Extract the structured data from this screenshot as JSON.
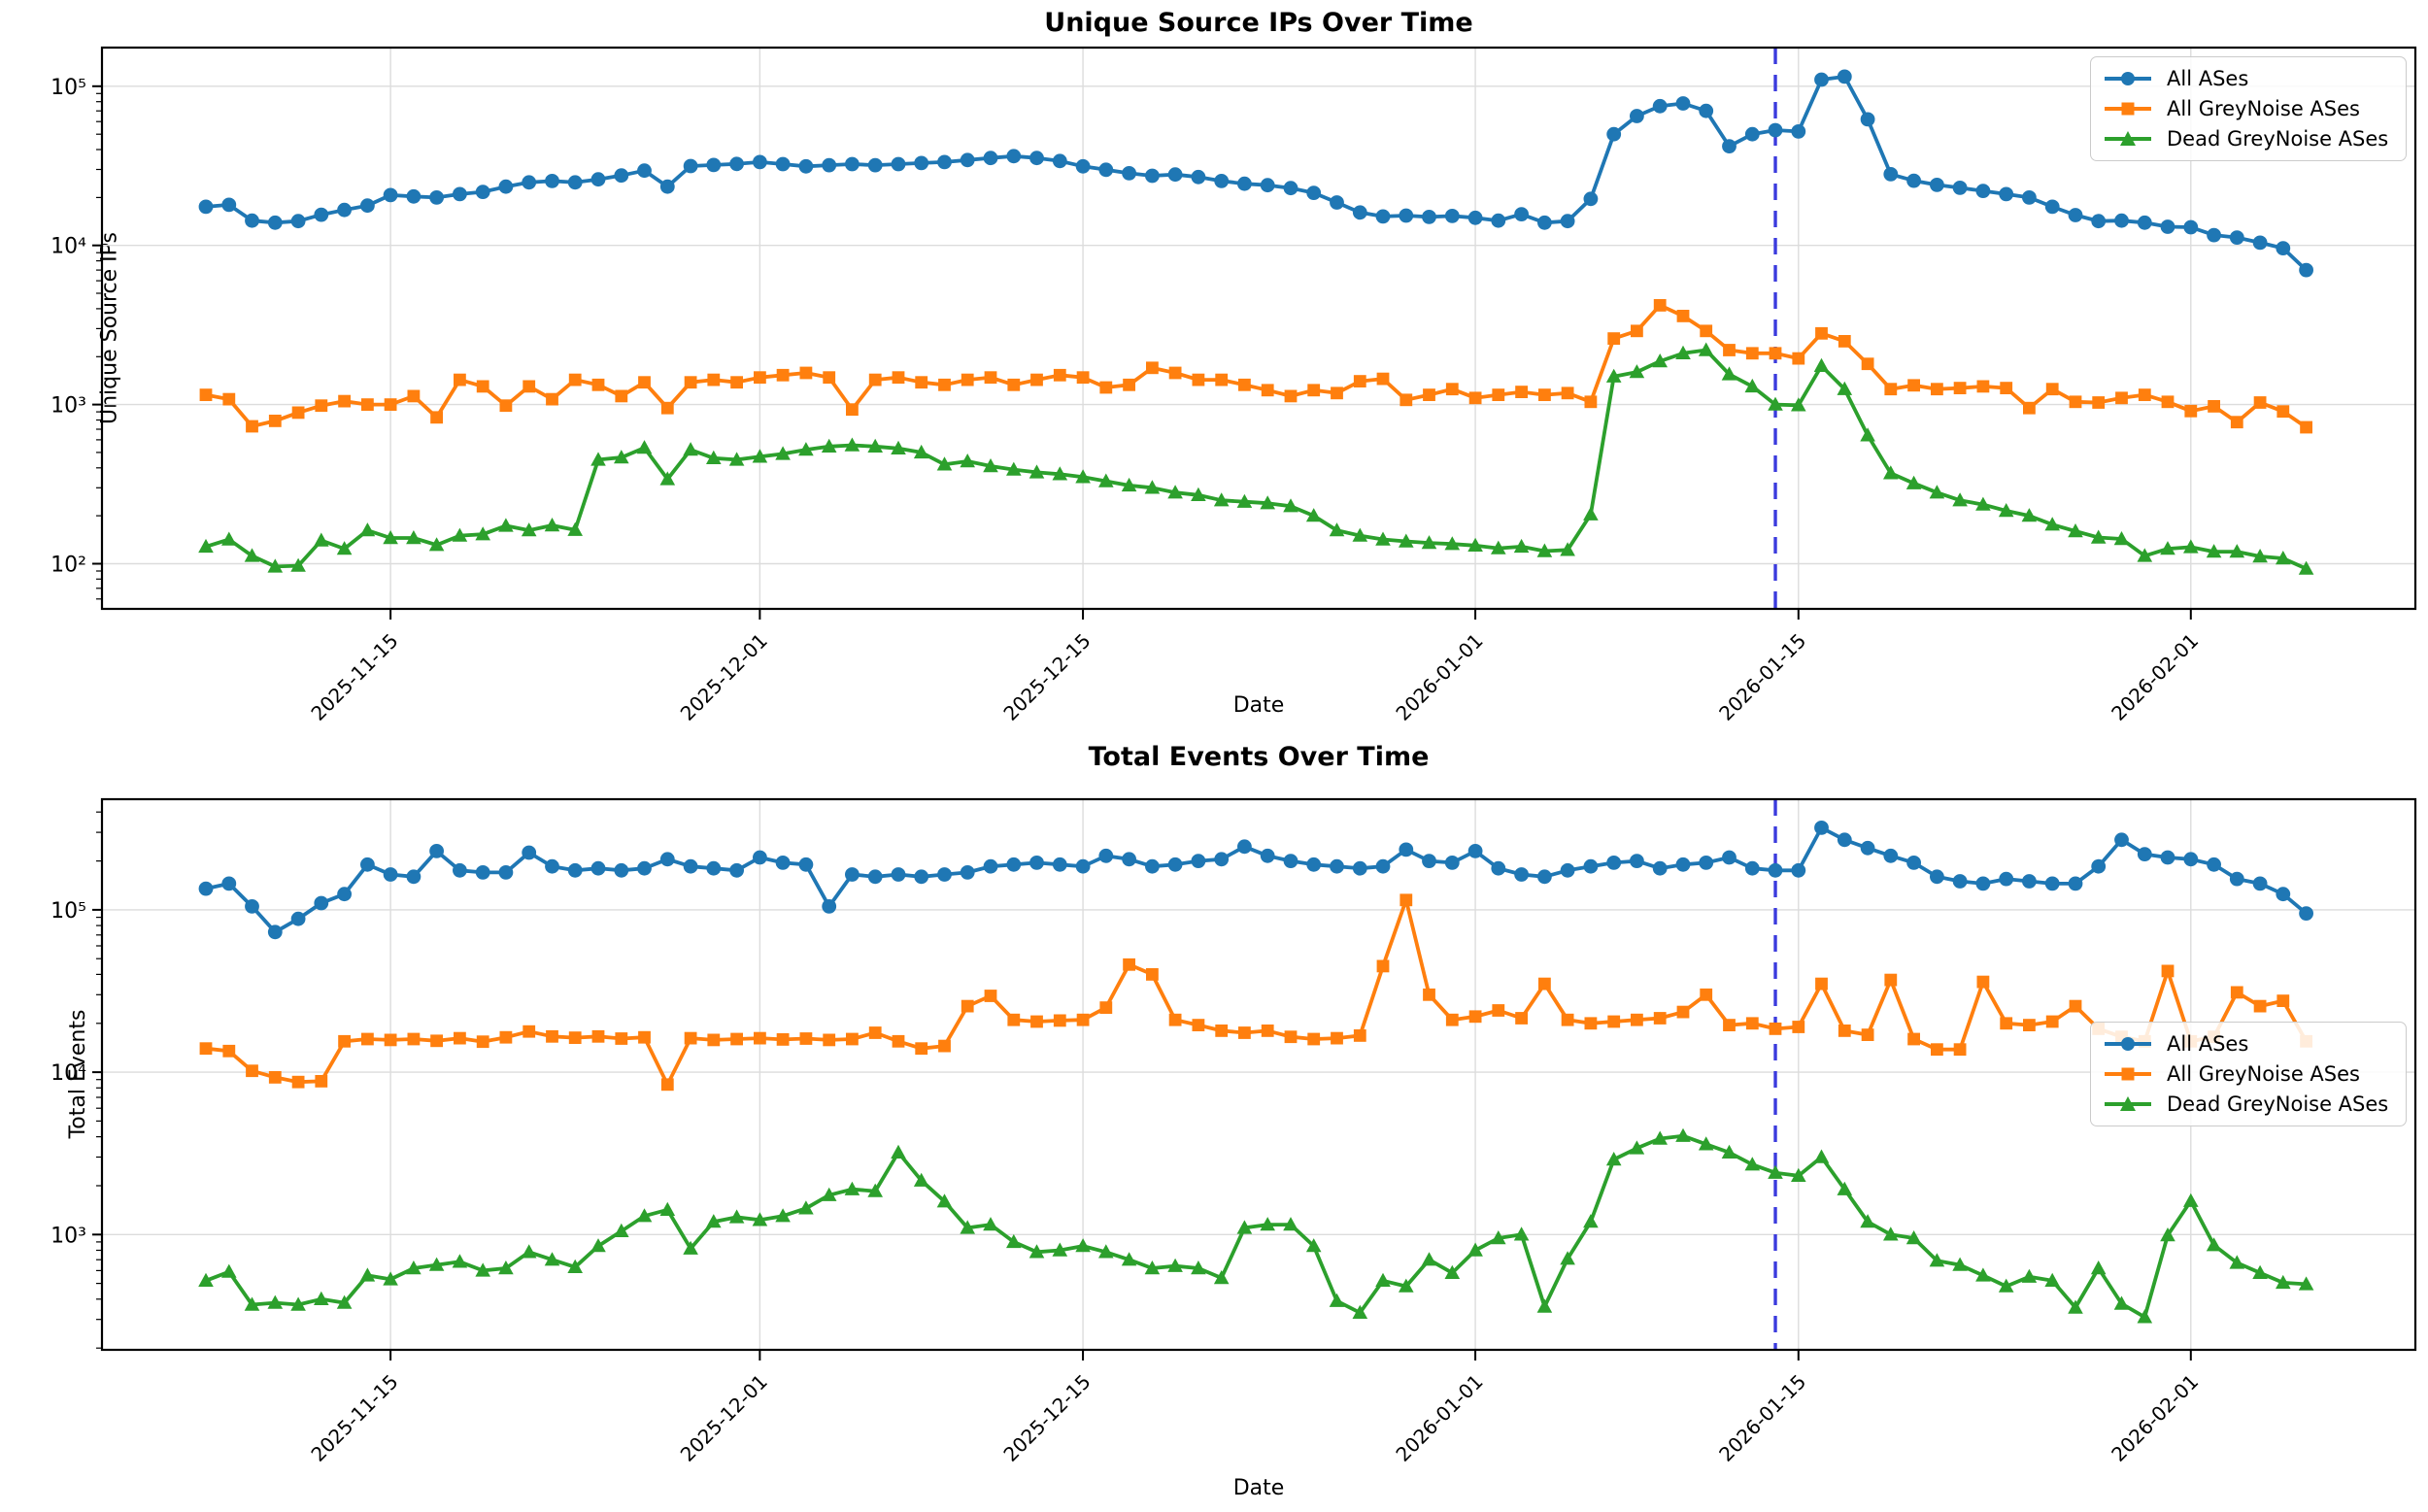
{
  "colors": {
    "all_ases": "#1f77b4",
    "all_greynoise": "#ff7f0e",
    "dead_greynoise": "#2ca02c",
    "vline": "#3b3bdd",
    "grid": "#dcdcdc",
    "spine": "#000000"
  },
  "legend": {
    "items": [
      {
        "label": "All ASes",
        "color_key": "all_ases",
        "marker": "circle"
      },
      {
        "label": "All GreyNoise ASes",
        "color_key": "all_greynoise",
        "marker": "square"
      },
      {
        "label": "Dead GreyNoise ASes",
        "color_key": "dead_greynoise",
        "marker": "triangle"
      }
    ]
  },
  "chart_data": [
    {
      "type": "line",
      "yscale": "log",
      "title": "Unique Source IPs Over Time",
      "xlabel": "Date",
      "ylabel": "Unique Source IPs",
      "ylim": [
        52,
        175000
      ],
      "grid": true,
      "legend_position": "upper right",
      "x_tick_labels": [
        "2025-11-15",
        "2025-12-01",
        "2025-12-15",
        "2026-01-01",
        "2026-01-15",
        "2026-02-01"
      ],
      "x_tick_indices": [
        8,
        24,
        38,
        55,
        69,
        86
      ],
      "y_tick_labels": [
        "10⁵",
        "10⁴",
        "10³",
        "10²"
      ],
      "y_tick_values": [
        100000,
        10000,
        1000,
        100
      ],
      "vline": {
        "date": "2026-01-14",
        "index": 68,
        "style": "dashed"
      },
      "dates": [
        "2025-11-07",
        "2025-11-08",
        "2025-11-09",
        "2025-11-10",
        "2025-11-11",
        "2025-11-12",
        "2025-11-13",
        "2025-11-14",
        "2025-11-15",
        "2025-11-16",
        "2025-11-17",
        "2025-11-18",
        "2025-11-19",
        "2025-11-20",
        "2025-11-21",
        "2025-11-22",
        "2025-11-23",
        "2025-11-24",
        "2025-11-25",
        "2025-11-26",
        "2025-11-27",
        "2025-11-28",
        "2025-11-29",
        "2025-11-30",
        "2025-12-01",
        "2025-12-02",
        "2025-12-03",
        "2025-12-04",
        "2025-12-05",
        "2025-12-06",
        "2025-12-07",
        "2025-12-08",
        "2025-12-09",
        "2025-12-10",
        "2025-12-11",
        "2025-12-12",
        "2025-12-13",
        "2025-12-14",
        "2025-12-15",
        "2025-12-16",
        "2025-12-17",
        "2025-12-18",
        "2025-12-19",
        "2025-12-20",
        "2025-12-21",
        "2025-12-22",
        "2025-12-23",
        "2025-12-24",
        "2025-12-25",
        "2025-12-26",
        "2025-12-27",
        "2025-12-28",
        "2025-12-29",
        "2025-12-30",
        "2025-12-31",
        "2026-01-01",
        "2026-01-02",
        "2026-01-03",
        "2026-01-04",
        "2026-01-05",
        "2026-01-06",
        "2026-01-07",
        "2026-01-08",
        "2026-01-09",
        "2026-01-10",
        "2026-01-11",
        "2026-01-12",
        "2026-01-13",
        "2026-01-14",
        "2026-01-15",
        "2026-01-16",
        "2026-01-17",
        "2026-01-18",
        "2026-01-19",
        "2026-01-20",
        "2026-01-21",
        "2026-01-22",
        "2026-01-23",
        "2026-01-24",
        "2026-01-25",
        "2026-01-26",
        "2026-01-27",
        "2026-01-28",
        "2026-01-29",
        "2026-01-30",
        "2026-01-31",
        "2026-02-01",
        "2026-02-02",
        "2026-02-03",
        "2026-02-04",
        "2026-02-05",
        "2026-02-06"
      ],
      "series": [
        {
          "name": "All ASes",
          "color_key": "all_ases",
          "marker": "circle",
          "values": [
            17500,
            18000,
            14300,
            13900,
            14200,
            15600,
            16700,
            17800,
            20700,
            20300,
            20000,
            21000,
            21700,
            23400,
            24900,
            25400,
            24900,
            26000,
            27500,
            29500,
            23400,
            31500,
            32000,
            32500,
            33400,
            32400,
            31400,
            31900,
            32400,
            31900,
            32400,
            32900,
            33400,
            34400,
            35400,
            36400,
            35400,
            33900,
            31400,
            29900,
            28400,
            27400,
            27900,
            26900,
            25400,
            24400,
            23900,
            22900,
            21400,
            18600,
            16100,
            15200,
            15400,
            15100,
            15300,
            14900,
            14300,
            15700,
            13900,
            14200,
            19600,
            50000,
            65000,
            75000,
            78000,
            70000,
            42000,
            50000,
            53000,
            52000,
            110000,
            115000,
            62000,
            28000,
            25500,
            24000,
            23000,
            22000,
            21000,
            20000,
            17500,
            15500,
            14200,
            14300,
            13900,
            13100,
            13000,
            11600,
            11200,
            10400,
            9600,
            7000
          ]
        },
        {
          "name": "All GreyNoise ASes",
          "color_key": "all_greynoise",
          "marker": "square",
          "values": [
            1150,
            1080,
            730,
            790,
            890,
            985,
            1050,
            1000,
            1000,
            1130,
            830,
            1430,
            1300,
            985,
            1300,
            1080,
            1430,
            1330,
            1130,
            1380,
            950,
            1380,
            1430,
            1380,
            1480,
            1530,
            1580,
            1480,
            930,
            1430,
            1480,
            1380,
            1330,
            1430,
            1480,
            1330,
            1430,
            1530,
            1480,
            1280,
            1330,
            1700,
            1580,
            1430,
            1430,
            1330,
            1230,
            1130,
            1230,
            1180,
            1400,
            1450,
            1070,
            1150,
            1250,
            1100,
            1150,
            1200,
            1150,
            1180,
            1040,
            2600,
            2900,
            4200,
            3600,
            2900,
            2200,
            2100,
            2100,
            1950,
            2800,
            2500,
            1800,
            1250,
            1320,
            1250,
            1270,
            1300,
            1270,
            950,
            1250,
            1040,
            1030,
            1100,
            1150,
            1040,
            910,
            975,
            775,
            1030,
            905,
            720
          ]
        },
        {
          "name": "Dead GreyNoise ASes",
          "color_key": "dead_greynoise",
          "marker": "triangle",
          "values": [
            128,
            142,
            112,
            96,
            97,
            140,
            124,
            162,
            145,
            145,
            131,
            150,
            153,
            173,
            162,
            174,
            163,
            450,
            465,
            535,
            340,
            520,
            460,
            450,
            470,
            490,
            520,
            545,
            555,
            545,
            530,
            500,
            420,
            440,
            410,
            390,
            375,
            365,
            350,
            330,
            310,
            300,
            280,
            270,
            250,
            245,
            240,
            230,
            200,
            162,
            150,
            142,
            138,
            135,
            133,
            130,
            125,
            128,
            120,
            122,
            204,
            1500,
            1600,
            1870,
            2100,
            2200,
            1550,
            1300,
            1000,
            990,
            1750,
            1250,
            640,
            370,
            320,
            280,
            250,
            235,
            215,
            200,
            176,
            160,
            146,
            143,
            112,
            124,
            127,
            119,
            119,
            111,
            108,
            93
          ]
        }
      ]
    },
    {
      "type": "line",
      "yscale": "log",
      "title": "Total Events Over Time",
      "xlabel": "Date",
      "ylabel": "Total Events",
      "ylim": [
        195,
        480000
      ],
      "grid": true,
      "legend_position": "center right",
      "x_tick_labels": [
        "2025-11-15",
        "2025-12-01",
        "2025-12-15",
        "2026-01-01",
        "2026-01-15",
        "2026-02-01"
      ],
      "x_tick_indices": [
        8,
        24,
        38,
        55,
        69,
        86
      ],
      "y_tick_labels": [
        "10⁵",
        "10⁴",
        "10³"
      ],
      "y_tick_values": [
        100000,
        10000,
        1000
      ],
      "vline": {
        "date": "2026-01-14",
        "index": 68,
        "style": "dashed"
      },
      "dates": [
        "2025-11-07",
        "2025-11-08",
        "2025-11-09",
        "2025-11-10",
        "2025-11-11",
        "2025-11-12",
        "2025-11-13",
        "2025-11-14",
        "2025-11-15",
        "2025-11-16",
        "2025-11-17",
        "2025-11-18",
        "2025-11-19",
        "2025-11-20",
        "2025-11-21",
        "2025-11-22",
        "2025-11-23",
        "2025-11-24",
        "2025-11-25",
        "2025-11-26",
        "2025-11-27",
        "2025-11-28",
        "2025-11-29",
        "2025-11-30",
        "2025-12-01",
        "2025-12-02",
        "2025-12-03",
        "2025-12-04",
        "2025-12-05",
        "2025-12-06",
        "2025-12-07",
        "2025-12-08",
        "2025-12-09",
        "2025-12-10",
        "2025-12-11",
        "2025-12-12",
        "2025-12-13",
        "2025-12-14",
        "2025-12-15",
        "2025-12-16",
        "2025-12-17",
        "2025-12-18",
        "2025-12-19",
        "2025-12-20",
        "2025-12-21",
        "2025-12-22",
        "2025-12-23",
        "2025-12-24",
        "2025-12-25",
        "2025-12-26",
        "2025-12-27",
        "2025-12-28",
        "2025-12-29",
        "2025-12-30",
        "2025-12-31",
        "2026-01-01",
        "2026-01-02",
        "2026-01-03",
        "2026-01-04",
        "2026-01-05",
        "2026-01-06",
        "2026-01-07",
        "2026-01-08",
        "2026-01-09",
        "2026-01-10",
        "2026-01-11",
        "2026-01-12",
        "2026-01-13",
        "2026-01-14",
        "2026-01-15",
        "2026-01-16",
        "2026-01-17",
        "2026-01-18",
        "2026-01-19",
        "2026-01-20",
        "2026-01-21",
        "2026-01-22",
        "2026-01-23",
        "2026-01-24",
        "2026-01-25",
        "2026-01-26",
        "2026-01-27",
        "2026-01-28",
        "2026-01-29",
        "2026-01-30",
        "2026-01-31",
        "2026-02-01",
        "2026-02-02",
        "2026-02-03",
        "2026-02-04",
        "2026-02-05",
        "2026-02-06"
      ],
      "series": [
        {
          "name": "All ASes",
          "color_key": "all_ases",
          "marker": "circle",
          "values": [
            135000,
            145000,
            105000,
            73000,
            88000,
            110000,
            125000,
            190000,
            165000,
            160000,
            230000,
            175000,
            170000,
            170000,
            225000,
            185000,
            175000,
            180000,
            175000,
            180000,
            205000,
            185000,
            180000,
            175000,
            210000,
            195000,
            190000,
            105000,
            165000,
            160000,
            165000,
            160000,
            165000,
            170000,
            185000,
            190000,
            195000,
            190000,
            185000,
            215000,
            205000,
            185000,
            190000,
            200000,
            205000,
            245000,
            215000,
            200000,
            190000,
            185000,
            180000,
            185000,
            235000,
            200000,
            195000,
            230000,
            180000,
            165000,
            160000,
            175000,
            185000,
            195000,
            200000,
            180000,
            190000,
            195000,
            210000,
            180000,
            175000,
            175000,
            320000,
            270000,
            240000,
            215000,
            195000,
            160000,
            150000,
            145000,
            155000,
            150000,
            145000,
            145000,
            185000,
            270000,
            220000,
            210000,
            205000,
            190000,
            155000,
            145000,
            125000,
            95000
          ]
        },
        {
          "name": "All GreyNoise ASes",
          "color_key": "all_greynoise",
          "marker": "square",
          "values": [
            14000,
            13500,
            10200,
            9300,
            8700,
            8800,
            15500,
            16000,
            15800,
            16000,
            15600,
            16200,
            15400,
            16400,
            17800,
            16600,
            16300,
            16600,
            16100,
            16400,
            8400,
            16200,
            15800,
            16000,
            16200,
            15900,
            16100,
            15800,
            16000,
            17500,
            15500,
            14000,
            14500,
            25500,
            29500,
            21000,
            20500,
            20800,
            21000,
            25000,
            46000,
            40000,
            21000,
            19500,
            18000,
            17500,
            18000,
            16500,
            16000,
            16200,
            16800,
            45000,
            115000,
            30000,
            21000,
            22000,
            24000,
            21500,
            35000,
            21000,
            20000,
            20500,
            21000,
            21500,
            23500,
            30000,
            19500,
            20000,
            18500,
            19000,
            35000,
            18000,
            17000,
            37000,
            16000,
            13800,
            13800,
            36000,
            20000,
            19500,
            20500,
            25500,
            18500,
            16500,
            15500,
            42000,
            15500,
            16500,
            31000,
            25500,
            27500,
            15500
          ]
        },
        {
          "name": "Dead GreyNoise ASes",
          "color_key": "dead_greynoise",
          "marker": "triangle",
          "values": [
            520,
            590,
            370,
            380,
            370,
            400,
            380,
            560,
            530,
            620,
            650,
            680,
            600,
            620,
            780,
            700,
            630,
            850,
            1050,
            1300,
            1420,
            820,
            1200,
            1280,
            1230,
            1300,
            1450,
            1750,
            1900,
            1850,
            3200,
            2150,
            1600,
            1100,
            1150,
            900,
            780,
            800,
            850,
            780,
            700,
            620,
            640,
            620,
            540,
            1100,
            1150,
            1150,
            850,
            390,
            330,
            520,
            480,
            700,
            580,
            800,
            950,
            1000,
            360,
            710,
            1200,
            2900,
            3400,
            3900,
            4050,
            3600,
            3200,
            2700,
            2400,
            2300,
            3000,
            1900,
            1200,
            1000,
            950,
            690,
            650,
            560,
            480,
            550,
            520,
            355,
            620,
            375,
            310,
            990,
            1610,
            860,
            670,
            580,
            505,
            495
          ]
        }
      ]
    }
  ]
}
